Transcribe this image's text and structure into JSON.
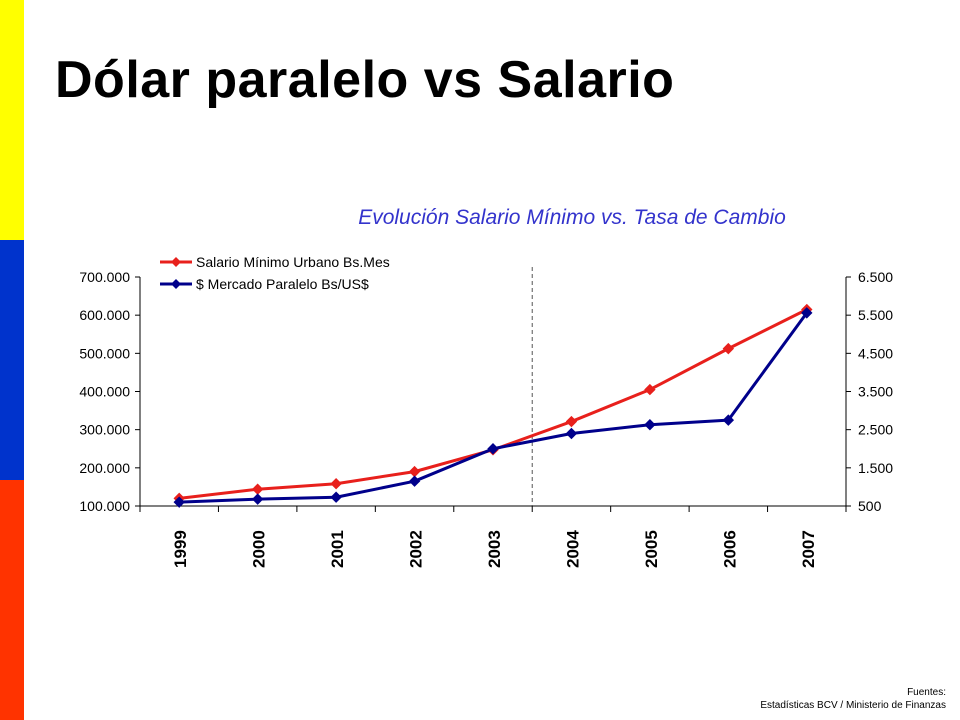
{
  "slide": {
    "title": "Dólar paralelo vs Salario",
    "colors": {
      "yellow": "#ffff00",
      "blue": "#0033cc",
      "red": "#ff3300"
    }
  },
  "sources": {
    "label": "Fuentes:",
    "text": "Estadísticas BCV /  Ministerio de Finanzas"
  },
  "chart_data": {
    "type": "line",
    "title": "Evolución Salario Mínimo vs. Tasa de Cambio",
    "title_color": "#3333cc",
    "categories": [
      "1999",
      "2000",
      "2001",
      "2002",
      "2003",
      "2004",
      "2005",
      "2006",
      "2007"
    ],
    "series": [
      {
        "name": "Salario Mínimo Urbano Bs.Mes",
        "axis": "left",
        "color": "#e8201c",
        "marker": "diamond",
        "values": [
          120000,
          144000,
          158400,
          190080,
          247104,
          321235,
          405000,
          512325,
          614790
        ]
      },
      {
        "name": "$ Mercado Paralelo Bs/US$",
        "axis": "right",
        "color": "#00008b",
        "marker": "diamond",
        "values": [
          600,
          680,
          730,
          1150,
          2000,
          2400,
          2630,
          2750,
          5560
        ]
      }
    ],
    "y_left": {
      "range": [
        100000,
        700000
      ],
      "ticks": [
        100000,
        200000,
        300000,
        400000,
        500000,
        600000,
        700000
      ],
      "tick_labels": [
        "100.000",
        "200.000",
        "300.000",
        "400.000",
        "500.000",
        "600.000",
        "700.000"
      ]
    },
    "y_right": {
      "range": [
        500,
        6500
      ],
      "ticks": [
        500,
        1500,
        2500,
        3500,
        4500,
        5500,
        6500
      ],
      "tick_labels": [
        "500",
        "1.500",
        "2.500",
        "3.500",
        "4.500",
        "5.500",
        "6.500"
      ]
    },
    "reference_line": {
      "style": "dashed",
      "between": [
        "2003",
        "2004"
      ]
    },
    "grid": false,
    "legend_position": "top-left"
  }
}
